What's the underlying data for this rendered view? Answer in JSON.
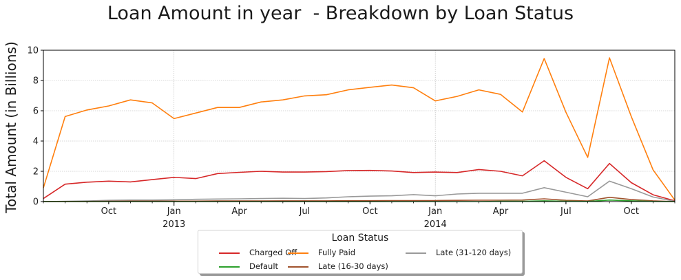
{
  "chart_data": {
    "type": "line",
    "title": "Loan Amount in year  - Breakdown by Loan Status",
    "xlabel": "",
    "ylabel": "Total Amount (in Billions)",
    "ylim": [
      0,
      10
    ],
    "yticks": [
      "0",
      "2",
      "4",
      "6",
      "8",
      "10"
    ],
    "x": [
      "2012-07",
      "2012-08",
      "2012-09",
      "2012-10",
      "2012-11",
      "2012-12",
      "2013-01",
      "2013-02",
      "2013-03",
      "2013-04",
      "2013-05",
      "2013-06",
      "2013-07",
      "2013-08",
      "2013-09",
      "2013-10",
      "2013-11",
      "2013-12",
      "2014-01",
      "2014-02",
      "2014-03",
      "2014-04",
      "2014-05",
      "2014-06",
      "2014-07",
      "2014-08",
      "2014-09",
      "2014-10",
      "2014-11",
      "2014-12"
    ],
    "xticks_major": [
      {
        "x": "2013-01",
        "label": "Jan",
        "year": "2013"
      },
      {
        "x": "2014-01",
        "label": "Jan",
        "year": "2014"
      }
    ],
    "xticks_minor": [
      {
        "x": "2012-10",
        "label": "Oct"
      },
      {
        "x": "2013-04",
        "label": "Apr"
      },
      {
        "x": "2013-07",
        "label": "Jul"
      },
      {
        "x": "2013-10",
        "label": "Oct"
      },
      {
        "x": "2014-04",
        "label": "Apr"
      },
      {
        "x": "2014-07",
        "label": "Jul"
      },
      {
        "x": "2014-10",
        "label": "Oct"
      }
    ],
    "grid": true,
    "legend_placement": "bottom-center",
    "series": [
      {
        "name": "Charged Off",
        "color": "#d62728",
        "values": [
          0.2,
          1.15,
          1.28,
          1.35,
          1.3,
          1.45,
          1.6,
          1.52,
          1.85,
          1.93,
          2.0,
          1.95,
          1.95,
          1.98,
          2.05,
          2.06,
          2.02,
          1.92,
          1.95,
          1.92,
          2.12,
          2.0,
          1.7,
          2.7,
          1.6,
          0.85,
          2.52,
          1.25,
          0.45,
          0.05
        ]
      },
      {
        "name": "Fully Paid",
        "color": "#ff7f0e",
        "values": [
          0.9,
          5.62,
          6.05,
          6.32,
          6.72,
          6.52,
          5.48,
          5.85,
          6.22,
          6.22,
          6.58,
          6.72,
          6.98,
          7.06,
          7.38,
          7.55,
          7.7,
          7.52,
          6.65,
          6.95,
          7.38,
          7.08,
          5.92,
          9.45,
          5.9,
          2.92,
          9.5,
          5.62,
          2.1,
          0.1
        ]
      },
      {
        "name": "Late (31-120 days)",
        "color": "#999999",
        "values": [
          0.0,
          0.02,
          0.04,
          0.08,
          0.1,
          0.1,
          0.12,
          0.15,
          0.17,
          0.18,
          0.2,
          0.22,
          0.2,
          0.24,
          0.32,
          0.36,
          0.38,
          0.46,
          0.38,
          0.5,
          0.55,
          0.55,
          0.55,
          0.92,
          0.62,
          0.32,
          1.35,
          0.85,
          0.3,
          0.02
        ]
      },
      {
        "name": "Late (16-30 days)",
        "color": "#a0522d",
        "values": [
          0.0,
          0.01,
          0.01,
          0.02,
          0.03,
          0.03,
          0.03,
          0.03,
          0.04,
          0.04,
          0.04,
          0.05,
          0.05,
          0.05,
          0.06,
          0.06,
          0.07,
          0.07,
          0.07,
          0.08,
          0.09,
          0.09,
          0.1,
          0.18,
          0.08,
          0.04,
          0.28,
          0.13,
          0.05,
          0.0
        ]
      },
      {
        "name": "Default",
        "color": "#2ca02c",
        "values": [
          0.0,
          0.0,
          0.0,
          0.0,
          0.0,
          0.0,
          0.0,
          0.0,
          0.0,
          0.0,
          0.0,
          0.0,
          0.0,
          0.0,
          0.0,
          0.0,
          0.0,
          0.0,
          0.0,
          0.0,
          0.0,
          0.02,
          0.02,
          0.05,
          0.02,
          0.01,
          0.1,
          0.05,
          0.01,
          0.0
        ]
      }
    ],
    "legend": {
      "title": "Loan Status",
      "entries": [
        {
          "name": "Charged Off",
          "color": "#d62728"
        },
        {
          "name": "Fully Paid",
          "color": "#ff7f0e"
        },
        {
          "name": "Late (31-120 days)",
          "color": "#999999"
        },
        {
          "name": "Default",
          "color": "#2ca02c"
        },
        {
          "name": "Late (16-30 days)",
          "color": "#a0522d"
        }
      ]
    }
  }
}
